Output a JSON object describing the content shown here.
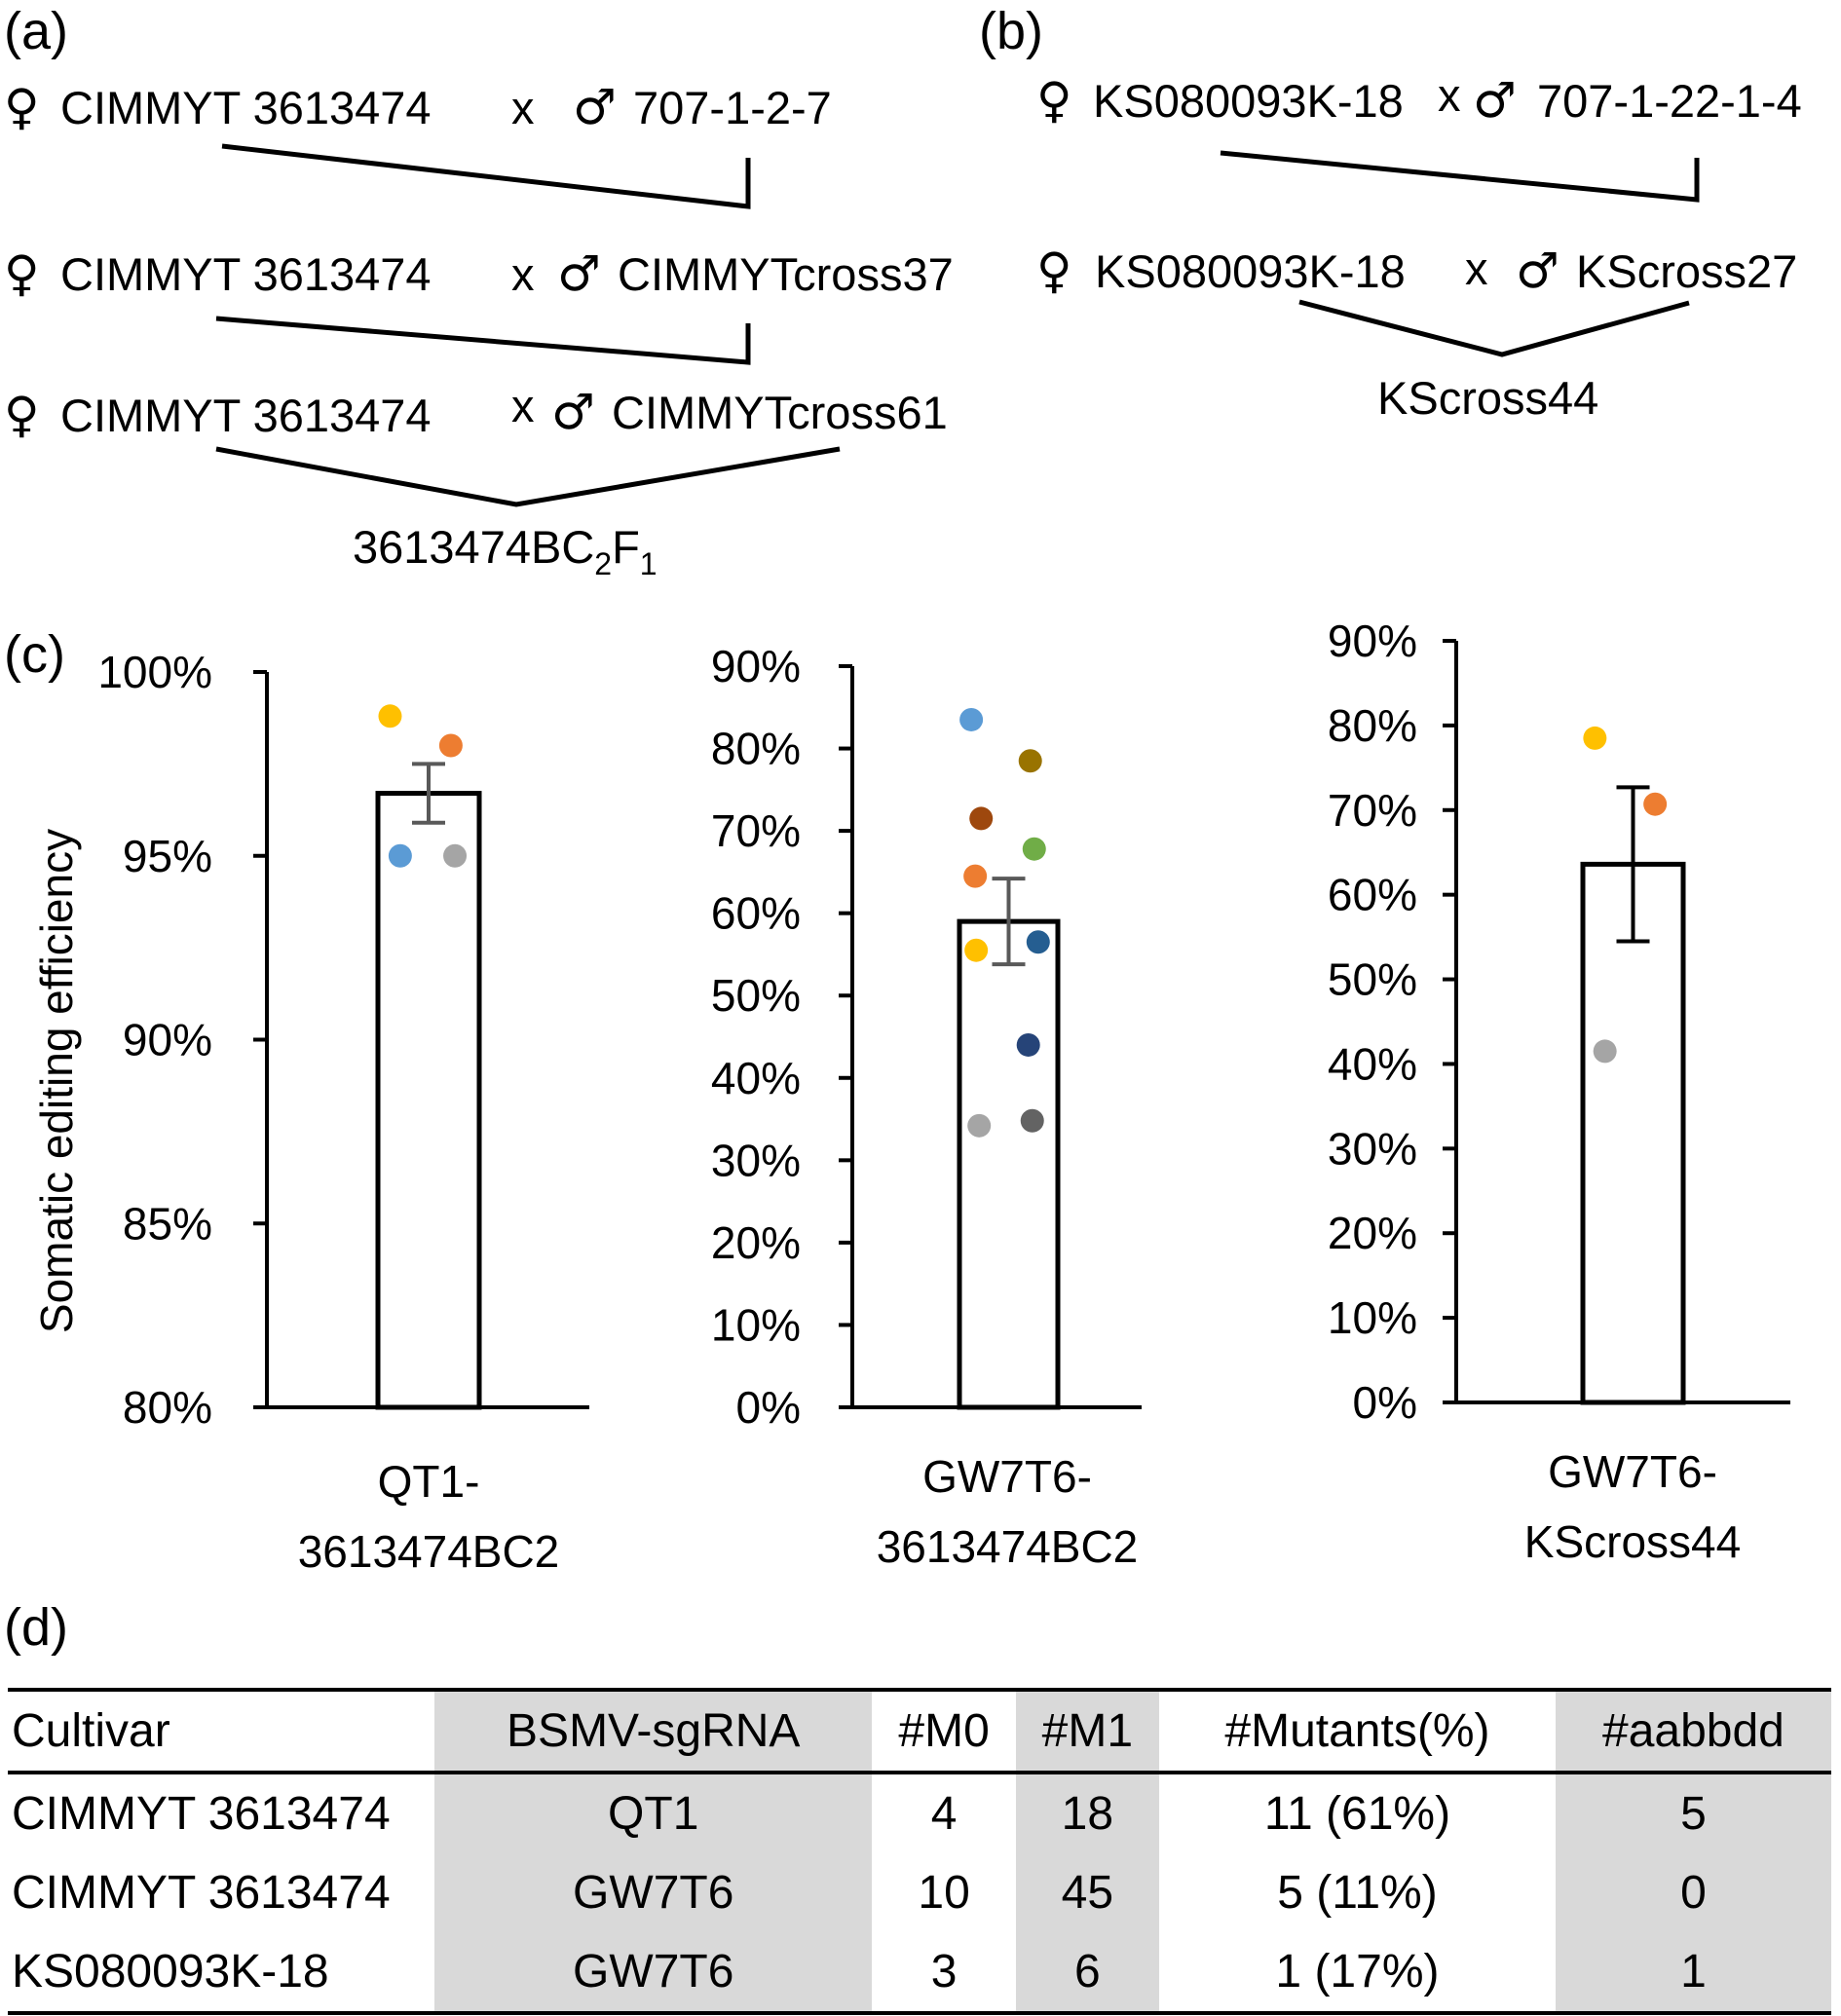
{
  "panels": {
    "a": "(a)",
    "b": "(b)",
    "c": "(c)",
    "d": "(d)"
  },
  "symbols": {
    "female": "♀",
    "male": "♂",
    "cross": "x"
  },
  "panel_a": {
    "rows": [
      {
        "female": "CIMMYT 3613474",
        "male": "707-1-2-7"
      },
      {
        "female": "CIMMYT 3613474",
        "male": "CIMMYTcross37"
      },
      {
        "female": "CIMMYT 3613474",
        "male": "CIMMYTcross61"
      }
    ],
    "result_base": "3613474BC",
    "result_sub1": "2",
    "result_mid": "F",
    "result_sub2": "1"
  },
  "panel_b": {
    "rows": [
      {
        "female": "KS080093K-18",
        "male": "707-1-22-1-4"
      },
      {
        "female": "KS080093K-18",
        "male": "KScross27"
      }
    ],
    "result": "KScross44"
  },
  "chart_data": [
    {
      "type": "bar",
      "ylabel": "Somatic editing efficiency",
      "ylim": [
        0.8,
        1.0
      ],
      "yticks": [
        "80%",
        "85%",
        "90%",
        "95%",
        "100%"
      ],
      "category_lines": [
        "QT1-",
        "3613474BC2"
      ],
      "value": 0.967,
      "error": 0.008,
      "points": [
        {
          "value": 0.988,
          "color": "#ffc000"
        },
        {
          "value": 0.98,
          "color": "#ed7d31"
        },
        {
          "value": 0.95,
          "color": "#5b9bd5"
        },
        {
          "value": 0.95,
          "color": "#a5a5a5"
        }
      ]
    },
    {
      "type": "bar",
      "ylim": [
        0,
        0.9
      ],
      "yticks": [
        "0%",
        "10%",
        "20%",
        "30%",
        "40%",
        "50%",
        "60%",
        "70%",
        "80%",
        "90%"
      ],
      "category_lines": [
        "GW7T6-",
        "3613474BC2"
      ],
      "value": 0.59,
      "error": 0.052,
      "points": [
        {
          "value": 0.835,
          "color": "#5b9bd5"
        },
        {
          "value": 0.785,
          "color": "#997300"
        },
        {
          "value": 0.715,
          "color": "#9e480e"
        },
        {
          "value": 0.678,
          "color": "#70ad47"
        },
        {
          "value": 0.645,
          "color": "#ed7d31"
        },
        {
          "value": 0.565,
          "color": "#255e91"
        },
        {
          "value": 0.555,
          "color": "#ffc000"
        },
        {
          "value": 0.44,
          "color": "#264478"
        },
        {
          "value": 0.348,
          "color": "#636363"
        },
        {
          "value": 0.342,
          "color": "#a5a5a5"
        }
      ]
    },
    {
      "type": "bar",
      "ylim": [
        0,
        0.9
      ],
      "yticks": [
        "0%",
        "10%",
        "20%",
        "30%",
        "40%",
        "50%",
        "60%",
        "70%",
        "80%",
        "90%"
      ],
      "category_lines": [
        "GW7T6-",
        "KScross44"
      ],
      "value": 0.636,
      "error": 0.091,
      "points": [
        {
          "value": 0.785,
          "color": "#ffc000"
        },
        {
          "value": 0.707,
          "color": "#ed7d31"
        },
        {
          "value": 0.415,
          "color": "#a5a5a5"
        }
      ]
    }
  ],
  "table": {
    "headers": [
      "Cultivar",
      "BSMV-sgRNA",
      "#M0",
      "#M1",
      "#Mutants(%)",
      "#aabbdd"
    ],
    "rows": [
      [
        "CIMMYT 3613474",
        "QT1",
        "4",
        "18",
        "11 (61%)",
        "5"
      ],
      [
        "CIMMYT 3613474",
        "GW7T6",
        "10",
        "45",
        "5 (11%)",
        "0"
      ],
      [
        "KS080093K-18",
        "GW7T6",
        "3",
        "6",
        "1 (17%)",
        "1"
      ]
    ]
  }
}
